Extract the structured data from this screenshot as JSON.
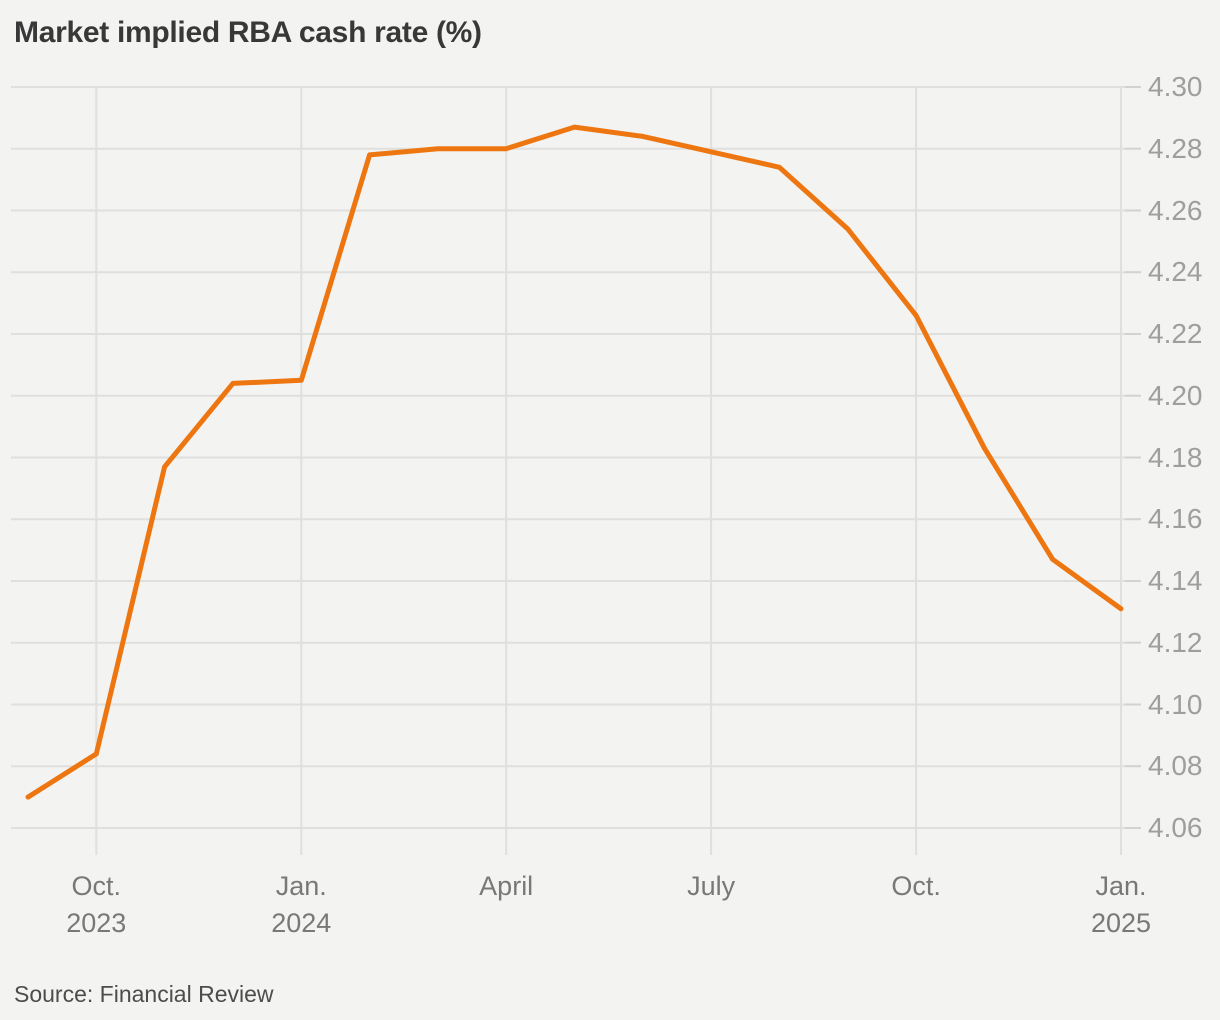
{
  "title": "Market implied RBA cash rate (%)",
  "source": "Source: Financial Review",
  "colors": {
    "line": "#ee7611",
    "background": "#f3f3f1",
    "grid": "#dfdfdd",
    "axis_tick": "#d2d2d0",
    "title_text": "#383838",
    "y_label_text": "#9e9e9e",
    "x_label_text": "#787878",
    "source_text": "#4c4c4c"
  },
  "chart_data": {
    "type": "line",
    "title": "Market implied RBA cash rate (%)",
    "xlabel": "",
    "ylabel": "",
    "grid": true,
    "legend": false,
    "y_axis": {
      "min": 4.06,
      "max": 4.3,
      "step": 0.02,
      "side": "right",
      "labels": [
        "4.30",
        "4.28",
        "4.26",
        "4.24",
        "4.22",
        "4.20",
        "4.18",
        "4.16",
        "4.14",
        "4.12",
        "4.10",
        "4.08",
        "4.06"
      ]
    },
    "x_axis": {
      "ticks": [
        {
          "lines": [
            "Oct.",
            "2023"
          ],
          "month_index": 1
        },
        {
          "lines": [
            "Jan.",
            "2024"
          ],
          "month_index": 4
        },
        {
          "lines": [
            "April"
          ],
          "month_index": 7
        },
        {
          "lines": [
            "July"
          ],
          "month_index": 10
        },
        {
          "lines": [
            "Oct."
          ],
          "month_index": 13
        },
        {
          "lines": [
            "Jan.",
            "2025"
          ],
          "month_index": 16
        }
      ]
    },
    "series": [
      {
        "name": "Market implied RBA cash rate (%)",
        "points": [
          {
            "month": "Sep 2023",
            "value": 4.07
          },
          {
            "month": "Oct 2023",
            "value": 4.084
          },
          {
            "month": "Nov 2023",
            "value": 4.177
          },
          {
            "month": "Dec 2023",
            "value": 4.204
          },
          {
            "month": "Jan 2024",
            "value": 4.205
          },
          {
            "month": "Feb 2024",
            "value": 4.278
          },
          {
            "month": "Mar 2024",
            "value": 4.28
          },
          {
            "month": "Apr 2024",
            "value": 4.28
          },
          {
            "month": "May 2024",
            "value": 4.287
          },
          {
            "month": "Jun 2024",
            "value": 4.284
          },
          {
            "month": "Jul 2024",
            "value": 4.279
          },
          {
            "month": "Aug 2024",
            "value": 4.274
          },
          {
            "month": "Sep 2024",
            "value": 4.254
          },
          {
            "month": "Oct 2024",
            "value": 4.226
          },
          {
            "month": "Nov 2024",
            "value": 4.183
          },
          {
            "month": "Dec 2024",
            "value": 4.147
          },
          {
            "month": "Jan 2025",
            "value": 4.131
          }
        ]
      }
    ]
  }
}
